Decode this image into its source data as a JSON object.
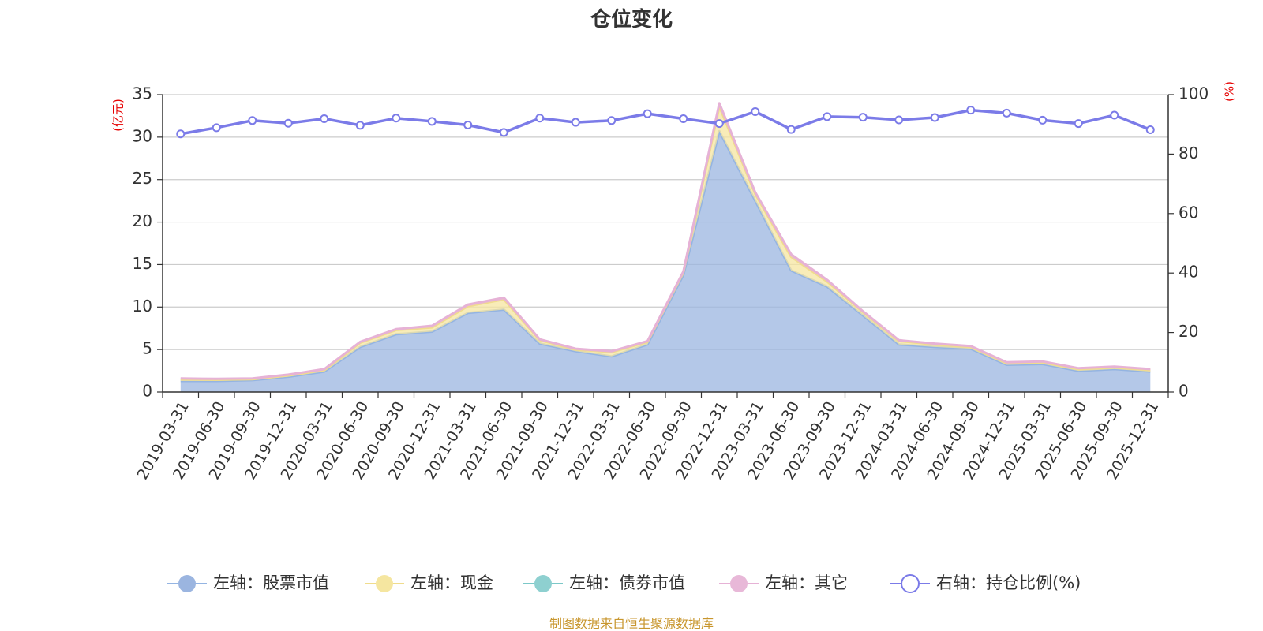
{
  "chart_data": {
    "type": "area",
    "title": "仓位变化",
    "left_axis_unit": "(亿元)",
    "right_axis_unit": "(%)",
    "ylim_left": [
      0,
      35
    ],
    "ylim_right": [
      0,
      100
    ],
    "yticks_left": [
      "0",
      "5",
      "10",
      "15",
      "20",
      "25",
      "30",
      "35"
    ],
    "yticks_right": [
      "0",
      "20",
      "40",
      "60",
      "80",
      "100"
    ],
    "categories": [
      "2019-03-31",
      "2019-06-30",
      "2019-09-30",
      "2019-12-31",
      "2020-03-31",
      "2020-06-30",
      "2020-09-30",
      "2020-12-31",
      "2021-03-31",
      "2021-06-30",
      "2021-09-30",
      "2021-12-31",
      "2022-03-31",
      "2022-06-30",
      "2022-09-30",
      "2022-12-31",
      "2023-03-31",
      "2023-06-30",
      "2023-09-30",
      "2023-12-31",
      "2024-03-31",
      "2024-06-30",
      "2024-09-30",
      "2024-12-31",
      "2025-03-31",
      "2025-06-30",
      "2025-09-30",
      "2025-12-31"
    ],
    "series": [
      {
        "name": "左轴：股票市值",
        "axis": "left",
        "color": "#9bb5e0",
        "values": [
          1.3,
          1.3,
          1.4,
          1.8,
          2.4,
          5.3,
          6.8,
          7.1,
          9.3,
          9.7,
          5.7,
          4.8,
          4.2,
          5.6,
          13.8,
          30.7,
          22.5,
          14.3,
          12.4,
          9.0,
          5.6,
          5.3,
          5.1,
          3.2,
          3.3,
          2.5,
          2.7,
          2.4
        ]
      },
      {
        "name": "左轴：现金",
        "axis": "left",
        "color": "#f5e6a0",
        "values": [
          0.2,
          0.15,
          0.1,
          0.15,
          0.2,
          0.5,
          0.5,
          0.5,
          0.8,
          1.2,
          0.4,
          0.2,
          0.5,
          0.3,
          0.3,
          2.9,
          0.8,
          1.6,
          0.6,
          0.4,
          0.4,
          0.3,
          0.2,
          0.2,
          0.2,
          0.2,
          0.2,
          0.2
        ]
      },
      {
        "name": "左轴：债券市值",
        "axis": "left",
        "color": "#8ed0d0",
        "values": [
          0,
          0,
          0,
          0,
          0,
          0,
          0,
          0,
          0,
          0,
          0,
          0,
          0,
          0,
          0,
          0,
          0,
          0,
          0,
          0,
          0,
          0,
          0,
          0,
          0,
          0,
          0,
          0
        ]
      },
      {
        "name": "左轴：其它",
        "axis": "left",
        "color": "#e8b8d8",
        "values": [
          0.1,
          0.1,
          0.1,
          0.1,
          0.1,
          0.1,
          0.1,
          0.2,
          0.2,
          0.2,
          0.1,
          0.1,
          0.1,
          0.1,
          0.1,
          0.4,
          0.2,
          0.3,
          0.2,
          0.1,
          0.1,
          0.1,
          0.1,
          0.1,
          0.1,
          0.1,
          0.1,
          0.1
        ]
      },
      {
        "name": "右轴：持仓比例(%)",
        "axis": "right",
        "color": "#7b7be8",
        "values": [
          86.8,
          88.9,
          91.3,
          90.4,
          91.9,
          89.7,
          92.1,
          91.0,
          89.8,
          87.3,
          92.1,
          90.7,
          91.3,
          93.6,
          91.9,
          90.3,
          94.3,
          88.3,
          92.6,
          92.4,
          91.5,
          92.3,
          94.8,
          93.8,
          91.4,
          90.3,
          93.1,
          88.2
        ]
      }
    ],
    "legend_position": "bottom"
  },
  "source_text": "制图数据来自恒生聚源数据库"
}
